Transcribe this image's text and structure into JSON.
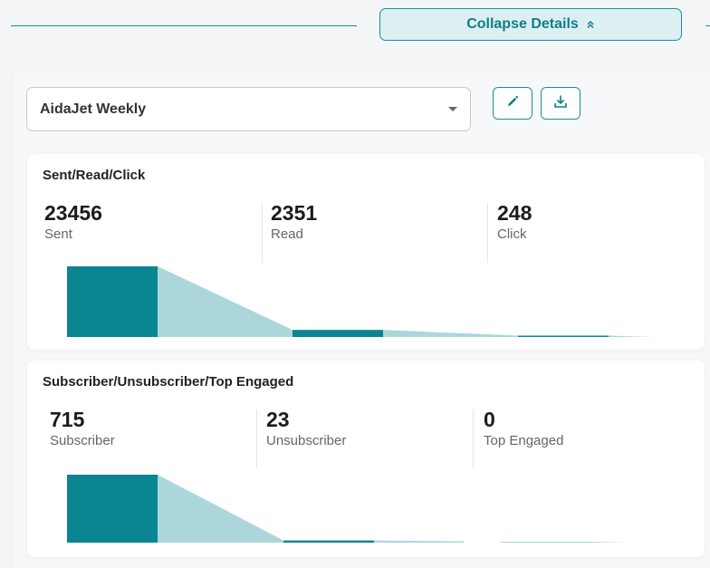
{
  "header": {
    "collapse_label": "Collapse Details",
    "collapse_icon": "double-chevron-up-icon"
  },
  "report_select": {
    "value": "AidaJet Weekly"
  },
  "toolbar": {
    "edit_icon": "pencil-icon",
    "download_icon": "download-icon"
  },
  "colors": {
    "accent": "#0d7f88",
    "dark_bar": "#0b8591",
    "light_fill": "#abd7db"
  },
  "cards": [
    {
      "title": "Sent/Read/Click",
      "metrics": [
        {
          "value": "23456",
          "label": "Sent"
        },
        {
          "value": "2351",
          "label": "Read"
        },
        {
          "value": "248",
          "label": "Click"
        }
      ]
    },
    {
      "title": "Subscriber/Unsubscriber/Top Engaged",
      "metrics": [
        {
          "value": "715",
          "label": "Subscriber"
        },
        {
          "value": "23",
          "label": "Unsubscriber"
        },
        {
          "value": "0",
          "label": "Top Engaged"
        }
      ]
    }
  ],
  "chart_data": [
    {
      "type": "bar",
      "categories": [
        "Sent",
        "Read",
        "Click"
      ],
      "values": [
        23456,
        2351,
        248
      ]
    },
    {
      "type": "bar",
      "categories": [
        "Subscriber",
        "Unsubscriber",
        "Top Engaged"
      ],
      "values": [
        715,
        23,
        0
      ]
    }
  ]
}
